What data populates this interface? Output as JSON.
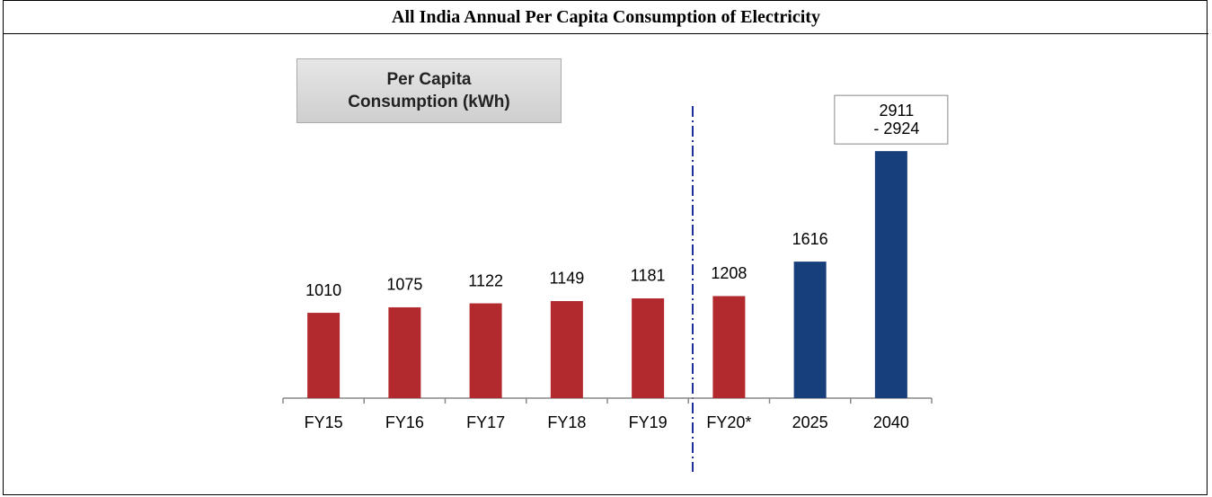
{
  "chart_data": {
    "type": "bar",
    "title": "All India Annual Per Capita Consumption of Electricity",
    "annotation": "Per Capita Consumption (kWh)",
    "categories": [
      "FY15",
      "FY16",
      "FY17",
      "FY18",
      "FY19",
      "FY20*",
      "2025",
      "2040"
    ],
    "values": [
      1010,
      1075,
      1122,
      1149,
      1181,
      1208,
      1616,
      2924
    ],
    "value_labels": [
      null,
      null,
      null,
      null,
      null,
      null,
      null,
      [
        "2911",
        "- 2924"
      ]
    ],
    "colors": [
      "#b22a2e",
      "#b22a2e",
      "#b22a2e",
      "#b22a2e",
      "#b22a2e",
      "#b22a2e",
      "#173f7c",
      "#173f7c"
    ],
    "ylim": [
      0,
      3000
    ]
  }
}
